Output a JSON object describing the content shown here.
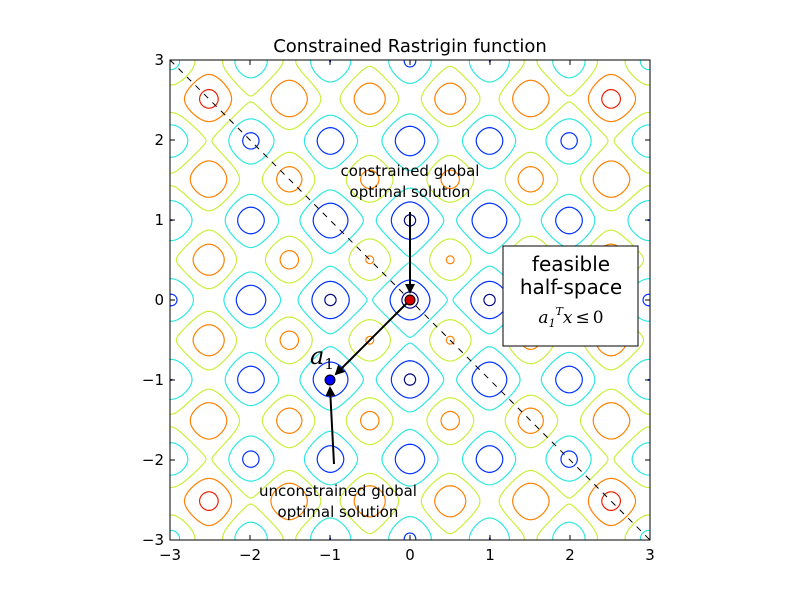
{
  "chart_data": {
    "type": "contour",
    "title": "Constrained Rastrigin function",
    "xlim": [
      -3,
      3
    ],
    "ylim": [
      -3,
      3
    ],
    "x_ticks": [
      -3,
      -2,
      -1,
      0,
      1,
      2,
      3
    ],
    "y_ticks": [
      -3,
      -2,
      -1,
      0,
      1,
      2,
      3
    ],
    "tick_labels": {
      "x": [
        "−3",
        "−2",
        "−1",
        "0",
        "1",
        "2",
        "3"
      ],
      "y": [
        "−3",
        "−2",
        "−1",
        "0",
        "1",
        "2",
        "3"
      ]
    },
    "grid": false,
    "contour_levels": [
      {
        "value": 2,
        "color": "#000080"
      },
      {
        "value": 10,
        "color": "#0030ff"
      },
      {
        "value": 20,
        "color": "#2ee8e0"
      },
      {
        "value": 30,
        "color": "#c8f03a"
      },
      {
        "value": 40,
        "color": "#ff8000"
      },
      {
        "value": 50,
        "color": "#e82000"
      },
      {
        "value": 60,
        "color": "#800000"
      }
    ],
    "constraint_line": {
      "points": [
        [
          -3,
          3
        ],
        [
          3,
          -3
        ]
      ],
      "style": "dashed",
      "color": "#000000"
    },
    "constrained_optimum": {
      "x": 0,
      "y": 0,
      "color": "#d40000"
    },
    "unconstrained_optimum": {
      "x": -1,
      "y": -1,
      "color": "#0000ff"
    },
    "vector_a1": {
      "from": [
        0,
        0
      ],
      "to": [
        -1,
        -1
      ],
      "label": "a1"
    },
    "annotations": [
      {
        "text_lines": [
          "constrained global",
          "optimal solution"
        ],
        "text_pos": [
          0,
          1.45
        ],
        "arrow_from": [
          0,
          1.1
        ],
        "arrow_to": [
          0,
          0.1
        ]
      },
      {
        "text_lines": [
          "unconstrained global",
          "optimal solution"
        ],
        "text_pos": [
          -0.9,
          -2.55
        ],
        "arrow_from": [
          -0.95,
          -2.05
        ],
        "arrow_to": [
          -1,
          -1.1
        ]
      }
    ],
    "textbox": {
      "lines": [
        "feasible",
        "half-space"
      ],
      "math": "a1^T x ≤ 0"
    }
  }
}
